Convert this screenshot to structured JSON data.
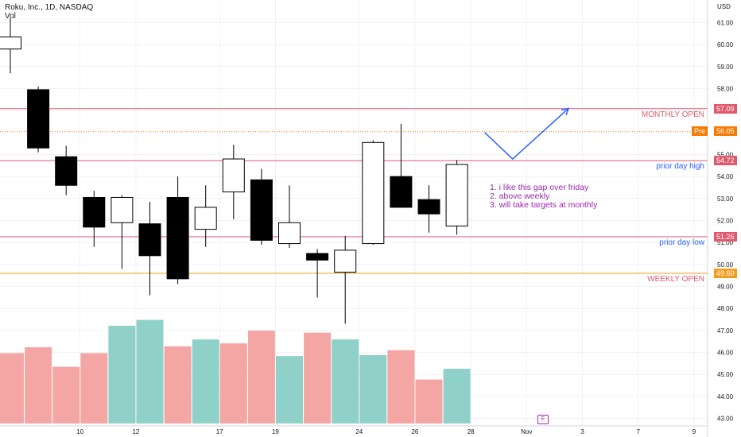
{
  "header": {
    "title": "Roku, Inc., 1D, NASDAQ",
    "indicator": "Vol"
  },
  "axis": {
    "currency": "USD"
  },
  "chart_data": {
    "type": "candlestick",
    "y_ticks": [
      "61.00",
      "60.00",
      "59.00",
      "58.00",
      "57.00",
      "56.00",
      "55.00",
      "54.00",
      "53.00",
      "52.00",
      "51.00",
      "50.00",
      "49.00",
      "48.00",
      "47.00",
      "46.00",
      "45.00",
      "44.00",
      "43.00"
    ],
    "x_ticks": [
      {
        "label": "10",
        "t": 2.5
      },
      {
        "label": "12",
        "t": 4.5
      },
      {
        "label": "17",
        "t": 7.5
      },
      {
        "label": "19",
        "t": 9.5
      },
      {
        "label": "24",
        "t": 12.5
      },
      {
        "label": "26",
        "t": 14.5
      },
      {
        "label": "28",
        "t": 16.5
      },
      {
        "label": "Nov",
        "t": 18.5
      },
      {
        "label": "3",
        "t": 20.5
      },
      {
        "label": "7",
        "t": 22.5
      },
      {
        "label": "9",
        "t": 24.5
      }
    ],
    "ylim": [
      42.8,
      62.2
    ],
    "candles": [
      {
        "t": 0,
        "open": 59.8,
        "high": 61.2,
        "low": 58.7,
        "close": 60.35
      },
      {
        "t": 1,
        "open": 57.95,
        "high": 58.1,
        "low": 55.1,
        "close": 55.3
      },
      {
        "t": 2,
        "open": 54.9,
        "high": 55.4,
        "low": 53.15,
        "close": 53.6
      },
      {
        "t": 3,
        "open": 53.05,
        "high": 53.35,
        "low": 50.8,
        "close": 51.7
      },
      {
        "t": 4,
        "open": 51.9,
        "high": 53.15,
        "low": 49.8,
        "close": 53.05
      },
      {
        "t": 5,
        "open": 51.85,
        "high": 52.85,
        "low": 48.6,
        "close": 50.4
      },
      {
        "t": 6,
        "open": 53.05,
        "high": 54.0,
        "low": 49.1,
        "close": 49.35
      },
      {
        "t": 7,
        "open": 51.6,
        "high": 53.6,
        "low": 50.8,
        "close": 52.6
      },
      {
        "t": 8,
        "open": 53.3,
        "high": 55.45,
        "low": 52.05,
        "close": 54.8
      },
      {
        "t": 9,
        "open": 53.85,
        "high": 54.35,
        "low": 50.9,
        "close": 51.1
      },
      {
        "t": 10,
        "open": 50.95,
        "high": 53.6,
        "low": 50.75,
        "close": 51.9
      },
      {
        "t": 11,
        "open": 50.5,
        "high": 50.7,
        "low": 48.5,
        "close": 50.2
      },
      {
        "t": 12,
        "open": 49.65,
        "high": 51.3,
        "low": 47.3,
        "close": 50.65
      },
      {
        "t": 13,
        "open": 50.95,
        "high": 55.65,
        "low": 50.9,
        "close": 55.55
      },
      {
        "t": 14,
        "open": 54.0,
        "high": 56.4,
        "low": 52.65,
        "close": 52.6
      },
      {
        "t": 15,
        "open": 52.95,
        "high": 53.6,
        "low": 51.45,
        "close": 52.3
      },
      {
        "t": 16,
        "open": 51.75,
        "high": 54.75,
        "low": 51.35,
        "close": 54.55
      }
    ],
    "volume": [
      {
        "t": 0,
        "v": 0.72,
        "dir": "down"
      },
      {
        "t": 1,
        "v": 0.78,
        "dir": "down"
      },
      {
        "t": 2,
        "v": 0.58,
        "dir": "down"
      },
      {
        "t": 3,
        "v": 0.72,
        "dir": "down"
      },
      {
        "t": 4,
        "v": 1.0,
        "dir": "up"
      },
      {
        "t": 5,
        "v": 1.06,
        "dir": "up"
      },
      {
        "t": 6,
        "v": 0.79,
        "dir": "down"
      },
      {
        "t": 7,
        "v": 0.86,
        "dir": "up"
      },
      {
        "t": 8,
        "v": 0.82,
        "dir": "down"
      },
      {
        "t": 9,
        "v": 0.95,
        "dir": "down"
      },
      {
        "t": 10,
        "v": 0.69,
        "dir": "up"
      },
      {
        "t": 11,
        "v": 0.93,
        "dir": "down"
      },
      {
        "t": 12,
        "v": 0.86,
        "dir": "up"
      },
      {
        "t": 13,
        "v": 0.7,
        "dir": "up"
      },
      {
        "t": 14,
        "v": 0.75,
        "dir": "down"
      },
      {
        "t": 15,
        "v": 0.45,
        "dir": "down"
      },
      {
        "t": 16,
        "v": 0.56,
        "dir": "up"
      }
    ],
    "price_lines": [
      {
        "price": 57.09,
        "label": "MONTHLY OPEN",
        "tag": "57.09",
        "color": "#e05a6e",
        "label_color": "#e05a6e"
      },
      {
        "price": 54.72,
        "label": "prior day high",
        "tag": "54.72",
        "color": "#e05a6e",
        "label_color": "#2962ff"
      },
      {
        "price": 51.26,
        "label": "prior day low",
        "tag": "51.26",
        "color": "#e05a6e",
        "label_color": "#2962ff"
      },
      {
        "price": 49.6,
        "label": "WEEKLY OPEN",
        "tag": "49.60",
        "color": "#f59d1d",
        "label_color": "#e05a6e"
      }
    ],
    "premarket": {
      "price": 56.05,
      "prefix": "Pre",
      "tag": "56.05",
      "color": "#f57c00"
    },
    "projection": [
      [
        17.0,
        56.0
      ],
      [
        18.0,
        54.8
      ],
      [
        20.0,
        57.1
      ]
    ],
    "colors": {
      "up_volume": "#8fd1c8",
      "down_volume": "#f4a6a5",
      "candle_down": "#000000",
      "candle_up": "#ffffff",
      "candle_outline": "#000000",
      "projection": "#2962ff",
      "grid": "#e6e6e6"
    }
  },
  "annotations": {
    "note_lines": [
      "1. i like this gap over friday",
      "2. above weekly",
      "3. will take targets at monthly"
    ],
    "event_marker": "E"
  }
}
